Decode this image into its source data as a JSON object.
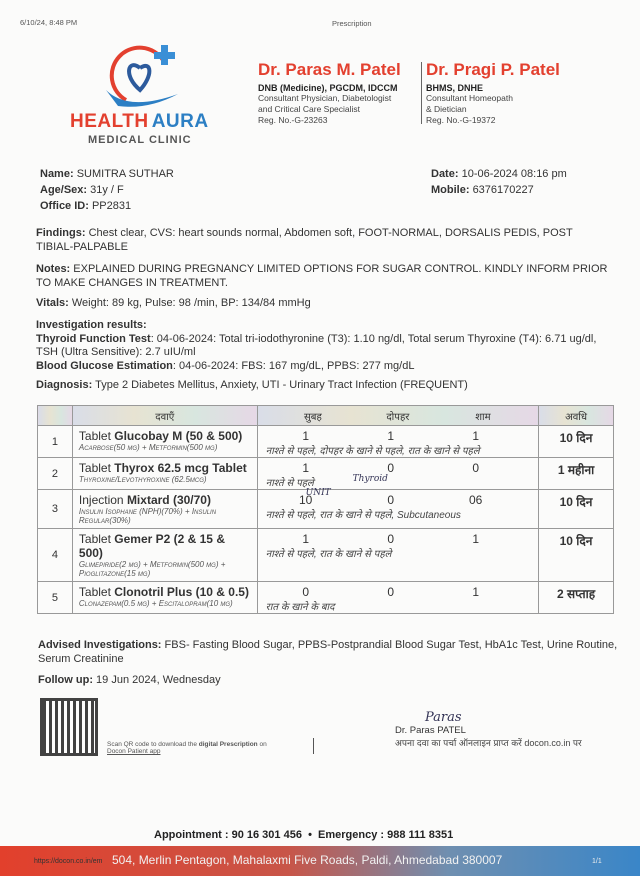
{
  "print_header": {
    "datetime": "6/10/24, 8:48 PM",
    "title": "Prescription"
  },
  "clinic": {
    "name1": "HEALTH",
    "name2": "AURA",
    "subtitle": "MEDICAL CLINIC",
    "colors": {
      "red": "#e3402f",
      "blue": "#2c7fc4"
    }
  },
  "doctors": [
    {
      "name": "Dr. Paras M. Patel",
      "qual": "DNB (Medicine), PGCDM, IDCCM",
      "desc1": "Consultant Physician, Diabetologist",
      "desc2": "and Critical Care Specialist",
      "reg": "Reg. No.-G-23263"
    },
    {
      "name": "Dr. Pragi P. Patel",
      "qual": "BHMS, DNHE",
      "desc1": "Consultant Homeopath",
      "desc2": "& Dietician",
      "reg": "Reg. No.-G-19372"
    }
  ],
  "patient": {
    "name_label": "Name:",
    "name": "SUMITRA SUTHAR",
    "age_label": "Age/Sex:",
    "age": "31y / F",
    "office_label": "Office ID:",
    "office": "PP2831",
    "date_label": "Date:",
    "date": "10-06-2024 08:16 pm",
    "mobile_label": "Mobile:",
    "mobile": "6376170227"
  },
  "findings": {
    "label": "Findings:",
    "text": "Chest clear, CVS: heart sounds normal, Abdomen soft, FOOT-NORMAL, DORSALIS PEDIS, POST TIBIAL-PALPABLE"
  },
  "notes": {
    "label": "Notes:",
    "text": "EXPLAINED DURING PREGNANCY LIMITED OPTIONS FOR SUGAR CONTROL. KINDLY INFORM PRIOR TO MAKE CHANGES IN TREATMENT."
  },
  "vitals": {
    "label": "Vitals:",
    "text": "Weight: 89 kg, Pulse: 98 /min, BP: 134/84 mmHg"
  },
  "investigations": {
    "label": "Investigation results:",
    "thyroid_label": "Thyroid Function Test",
    "thyroid": ": 04-06-2024: Total tri-iodothyronine (T3): 1.10 ng/dl, Total serum Thyroxine (T4): 6.71 ug/dl, TSH (Ultra Sensitive): 2.7 uIU/ml",
    "glucose_label": "Blood Glucose Estimation",
    "glucose": ": 04-06-2024: FBS: 167 mg/dL, PPBS: 277 mg/dL"
  },
  "diagnosis": {
    "label": "Diagnosis:",
    "text": "Type 2 Diabetes Mellitus, Anxiety, UTI - Urinary Tract Infection (FREQUENT)"
  },
  "table": {
    "headers": [
      "",
      "दवाएँ",
      "सुबह",
      "दोपहर",
      "शाम",
      "अवधि"
    ],
    "rows": [
      {
        "no": "1",
        "form": "Tablet ",
        "name": "Glucobay M (50 & 500)",
        "generic": "Acarbose(50 mg) + Metformin(500 mg)",
        "m": "1",
        "a": "1",
        "e": "1",
        "instr": "नाश्ते से पहले, दोपहर के खाने से पहले, रात के खाने से पहले",
        "dur": "10 दिन"
      },
      {
        "no": "2",
        "form": "Tablet ",
        "name": "Thyrox 62.5 mcg Tablet",
        "generic": "Thyroxine/Levothyroxine (62.5mcg)",
        "m": "1",
        "a": "0",
        "e": "0",
        "instr": "नाश्ते से पहले",
        "dur": "1 महीना",
        "handwritten": "Thyroid"
      },
      {
        "no": "3",
        "form": "Injection ",
        "name": "Mixtard (30/70)",
        "generic": "Insulin Isophane (NPH)(70%) + Insulin Regular(30%)",
        "m": "10",
        "a": "0",
        "e": "06",
        "instr": "नाश्ते से पहले, रात के खाने से पहले, Subcutaneous",
        "dur": "10 दिन",
        "handwritten": "UNIT"
      },
      {
        "no": "4",
        "form": "Tablet ",
        "name": "Gemer P2 (2 & 15 & 500)",
        "generic": "Glimepiride(2 mg) + Metformin(500 mg) + Pioglitazone(15 mg)",
        "m": "1",
        "a": "0",
        "e": "1",
        "instr": "नाश्ते से पहले, रात के खाने से पहले",
        "dur": "10 दिन"
      },
      {
        "no": "5",
        "form": "Tablet ",
        "name": "Clonotril Plus (10 & 0.5)",
        "generic": "Clonazepam(0.5 mg) + Escitalopram(10 mg)",
        "m": "0",
        "a": "0",
        "e": "1",
        "instr": "रात के खाने के बाद",
        "dur": "2 सप्ताह"
      }
    ]
  },
  "advised": {
    "label": "Advised Investigations:",
    "text": "FBS- Fasting Blood Sugar, PPBS-Postprandial Blood Sugar Test, HbA1c Test, Urine Routine, Serum Creatinine"
  },
  "followup": {
    "label": "Follow up:",
    "text": "19 Jun 2024, Wednesday"
  },
  "qr": {
    "text1": "Scan QR code to download the ",
    "bold": "digital Prescription",
    "text2": " on",
    "link": "Docon Patient app"
  },
  "signature": {
    "handwritten": "Paras",
    "name": "Dr. Paras PATEL",
    "note": "अपना दवा का पर्चा ऑनलाइन प्राप्त करें docon.co.in पर"
  },
  "footer": {
    "appointment": "Appointment : 90 16 301 456",
    "emergency": "Emergency : 988 111 8351",
    "address": "504, Merlin Pentagon, Mahalaxmi Five Roads, Paldi, Ahmedabad 380007",
    "url": "https://docon.co.in/em",
    "page": "1/1"
  }
}
